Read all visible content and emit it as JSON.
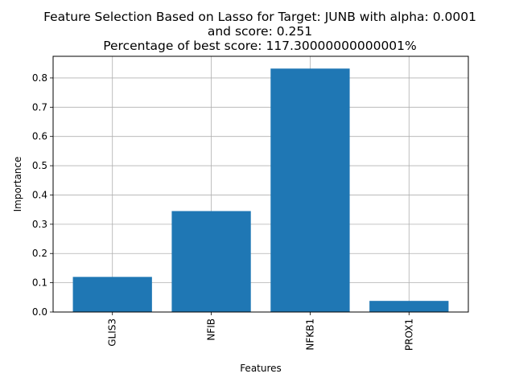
{
  "chart_data": {
    "type": "bar",
    "title_lines": [
      "Feature Selection Based on Lasso for Target: JUNB with alpha: 0.0001",
      "and score: 0.251",
      "Percentage of best score: 117.30000000000001%"
    ],
    "xlabel": "Features",
    "ylabel": "Importance",
    "categories": [
      "GLIS3",
      "NFIB",
      "NFKB1",
      "PROX1"
    ],
    "values": [
      0.12,
      0.345,
      0.832,
      0.038
    ],
    "ylim": [
      0,
      0.874
    ],
    "yticks": [
      "0.0",
      "0.1",
      "0.2",
      "0.3",
      "0.4",
      "0.5",
      "0.6",
      "0.7",
      "0.8"
    ],
    "grid": true,
    "bar_color": "#1f77b4",
    "grid_color": "#b0b0b0"
  }
}
